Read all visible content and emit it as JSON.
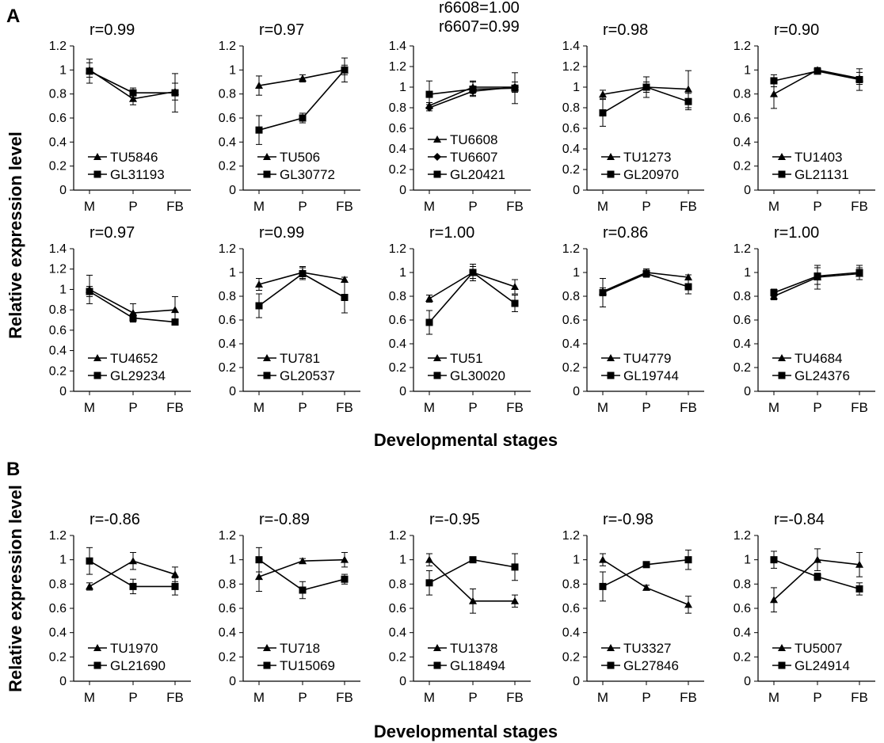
{
  "figure": {
    "panel_a_label": "A",
    "panel_b_label": "B",
    "a_ylabel": "Relative expression level",
    "a_xlabel": "Developmental stages",
    "b_ylabel": "Relative expression level",
    "b_xlabel": "Developmental stages"
  },
  "chart_data": [
    {
      "type": "line",
      "panel": "A",
      "row": 0,
      "col": 0,
      "r_label": "r=0.99",
      "categories": [
        "M",
        "P",
        "FB"
      ],
      "ylim": [
        0,
        1.2
      ],
      "yticks": [
        "0",
        "0.2",
        "0.4",
        "0.6",
        "0.8",
        "1",
        "1.2"
      ],
      "series": [
        {
          "name": "TU5846",
          "marker": "triangle",
          "values": [
            1.0,
            0.76,
            0.82
          ],
          "err": [
            0.06,
            0.05,
            0.07
          ]
        },
        {
          "name": "GL31193",
          "marker": "square",
          "values": [
            0.99,
            0.81,
            0.81
          ],
          "err": [
            0.1,
            0.04,
            0.16
          ]
        }
      ]
    },
    {
      "type": "line",
      "panel": "A",
      "row": 0,
      "col": 1,
      "r_label": "r=0.97",
      "categories": [
        "M",
        "P",
        "FB"
      ],
      "ylim": [
        0,
        1.2
      ],
      "yticks": [
        "0",
        "0.2",
        "0.4",
        "0.6",
        "0.8",
        "1",
        "1.2"
      ],
      "series": [
        {
          "name": "TU506",
          "marker": "triangle",
          "values": [
            0.87,
            0.93,
            1.0
          ],
          "err": [
            0.08,
            0.03,
            0.04
          ]
        },
        {
          "name": "GL30772",
          "marker": "square",
          "values": [
            0.5,
            0.6,
            1.0
          ],
          "err": [
            0.12,
            0.04,
            0.1
          ]
        }
      ]
    },
    {
      "type": "line",
      "panel": "A",
      "row": 0,
      "col": 2,
      "r_label_lines": [
        "r6608=1.00",
        "r6607=0.99"
      ],
      "categories": [
        "M",
        "P",
        "FB"
      ],
      "ylim": [
        0,
        1.4
      ],
      "yticks": [
        "0",
        "0.2",
        "0.4",
        "0.6",
        "0.8",
        "1",
        "1.2",
        "1.4"
      ],
      "series": [
        {
          "name": "TU6608",
          "marker": "triangle",
          "values": [
            0.82,
            1.0,
            1.0
          ],
          "err": [
            0.03,
            0.06,
            0.05
          ]
        },
        {
          "name": "TU6607",
          "marker": "diamond",
          "values": [
            0.8,
            0.96,
            1.0
          ],
          "err": [
            0.03,
            0.04,
            0.05
          ]
        },
        {
          "name": "GL20421",
          "marker": "square",
          "values": [
            0.93,
            0.98,
            0.99
          ],
          "err": [
            0.13,
            0.07,
            0.15
          ]
        }
      ]
    },
    {
      "type": "line",
      "panel": "A",
      "row": 0,
      "col": 3,
      "r_label": "r=0.98",
      "categories": [
        "M",
        "P",
        "FB"
      ],
      "ylim": [
        0,
        1.4
      ],
      "yticks": [
        "0",
        "0.2",
        "0.4",
        "0.6",
        "0.8",
        "1",
        "1.2",
        "1.4"
      ],
      "series": [
        {
          "name": "TU1273",
          "marker": "triangle",
          "values": [
            0.93,
            1.0,
            0.98
          ],
          "err": [
            0.04,
            0.05,
            0.18
          ]
        },
        {
          "name": "GL20970",
          "marker": "square",
          "values": [
            0.75,
            1.0,
            0.86
          ],
          "err": [
            0.13,
            0.1,
            0.08
          ]
        }
      ]
    },
    {
      "type": "line",
      "panel": "A",
      "row": 0,
      "col": 4,
      "r_label": "r=0.90",
      "categories": [
        "M",
        "P",
        "FB"
      ],
      "ylim": [
        0,
        1.2
      ],
      "yticks": [
        "0",
        "0.2",
        "0.4",
        "0.6",
        "0.8",
        "1",
        "1.2"
      ],
      "series": [
        {
          "name": "TU1403",
          "marker": "triangle",
          "values": [
            0.8,
            1.0,
            0.93
          ],
          "err": [
            0.12,
            0.02,
            0.05
          ]
        },
        {
          "name": "GL21131",
          "marker": "square",
          "values": [
            0.91,
            0.99,
            0.92
          ],
          "err": [
            0.05,
            0.02,
            0.09
          ]
        }
      ]
    },
    {
      "type": "line",
      "panel": "A",
      "row": 1,
      "col": 0,
      "r_label": "r=0.97",
      "categories": [
        "M",
        "P",
        "FB"
      ],
      "ylim": [
        0,
        1.4
      ],
      "yticks": [
        "0",
        "0.2",
        "0.4",
        "0.6",
        "0.8",
        "1",
        "1.2",
        "1.4"
      ],
      "series": [
        {
          "name": "TU4652",
          "marker": "triangle",
          "values": [
            1.0,
            0.77,
            0.8
          ],
          "err": [
            0.14,
            0.09,
            0.13
          ]
        },
        {
          "name": "GL29234",
          "marker": "square",
          "values": [
            0.98,
            0.72,
            0.68
          ],
          "err": [
            0.05,
            0.04,
            0.02
          ]
        }
      ]
    },
    {
      "type": "line",
      "panel": "A",
      "row": 1,
      "col": 1,
      "r_label": "r=0.99",
      "categories": [
        "M",
        "P",
        "FB"
      ],
      "ylim": [
        0,
        1.2
      ],
      "yticks": [
        "0",
        "0.2",
        "0.4",
        "0.6",
        "0.8",
        "1",
        "1.2"
      ],
      "series": [
        {
          "name": "TU781",
          "marker": "triangle",
          "values": [
            0.9,
            1.0,
            0.94
          ],
          "err": [
            0.05,
            0.05,
            0.02
          ]
        },
        {
          "name": "GL20537",
          "marker": "square",
          "values": [
            0.72,
            0.99,
            0.79
          ],
          "err": [
            0.1,
            0.05,
            0.13
          ]
        }
      ]
    },
    {
      "type": "line",
      "panel": "A",
      "row": 1,
      "col": 2,
      "r_label": "r=1.00",
      "categories": [
        "M",
        "P",
        "FB"
      ],
      "ylim": [
        0,
        1.2
      ],
      "yticks": [
        "0",
        "0.2",
        "0.4",
        "0.6",
        "0.8",
        "1",
        "1.2"
      ],
      "series": [
        {
          "name": "TU51",
          "marker": "triangle",
          "values": [
            0.78,
            1.0,
            0.88
          ],
          "err": [
            0.03,
            0.05,
            0.06
          ]
        },
        {
          "name": "GL30020",
          "marker": "square",
          "values": [
            0.58,
            1.0,
            0.74
          ],
          "err": [
            0.1,
            0.07,
            0.07
          ]
        }
      ]
    },
    {
      "type": "line",
      "panel": "A",
      "row": 1,
      "col": 3,
      "r_label": "r=0.86",
      "categories": [
        "M",
        "P",
        "FB"
      ],
      "ylim": [
        0,
        1.2
      ],
      "yticks": [
        "0",
        "0.2",
        "0.4",
        "0.6",
        "0.8",
        "1",
        "1.2"
      ],
      "series": [
        {
          "name": "TU4779",
          "marker": "triangle",
          "values": [
            0.84,
            1.0,
            0.96
          ],
          "err": [
            0.03,
            0.03,
            0.02
          ]
        },
        {
          "name": "GL19744",
          "marker": "square",
          "values": [
            0.83,
            0.99,
            0.88
          ],
          "err": [
            0.12,
            0.03,
            0.06
          ]
        }
      ]
    },
    {
      "type": "line",
      "panel": "A",
      "row": 1,
      "col": 4,
      "r_label": "r=1.00",
      "categories": [
        "M",
        "P",
        "FB"
      ],
      "ylim": [
        0,
        1.2
      ],
      "yticks": [
        "0",
        "0.2",
        "0.4",
        "0.6",
        "0.8",
        "1",
        "1.2"
      ],
      "series": [
        {
          "name": "TU4684",
          "marker": "triangle",
          "values": [
            0.8,
            0.96,
            0.99
          ],
          "err": [
            0.03,
            0.1,
            0.05
          ]
        },
        {
          "name": "GL24376",
          "marker": "square",
          "values": [
            0.83,
            0.97,
            1.0
          ],
          "err": [
            0.03,
            0.07,
            0.06
          ]
        }
      ]
    },
    {
      "type": "line",
      "panel": "B",
      "row": 2,
      "col": 0,
      "r_label": "r=-0.86",
      "categories": [
        "M",
        "P",
        "FB"
      ],
      "ylim": [
        0,
        1.2
      ],
      "yticks": [
        "0",
        "0.2",
        "0.4",
        "0.6",
        "0.8",
        "1",
        "1.2"
      ],
      "series": [
        {
          "name": "TU1970",
          "marker": "triangle",
          "values": [
            0.78,
            0.99,
            0.88
          ],
          "err": [
            0.03,
            0.07,
            0.06
          ]
        },
        {
          "name": "GL21690",
          "marker": "square",
          "values": [
            0.99,
            0.78,
            0.78
          ],
          "err": [
            0.11,
            0.06,
            0.07
          ]
        }
      ]
    },
    {
      "type": "line",
      "panel": "B",
      "row": 2,
      "col": 1,
      "r_label": "r=-0.89",
      "categories": [
        "M",
        "P",
        "FB"
      ],
      "ylim": [
        0,
        1.2
      ],
      "yticks": [
        "0",
        "0.2",
        "0.4",
        "0.6",
        "0.8",
        "1",
        "1.2"
      ],
      "series": [
        {
          "name": "TU718",
          "marker": "triangle",
          "values": [
            0.86,
            0.99,
            1.0
          ],
          "err": [
            0.12,
            0.02,
            0.06
          ]
        },
        {
          "name": "TU15069",
          "marker": "square",
          "values": [
            1.0,
            0.75,
            0.84
          ],
          "err": [
            0.1,
            0.07,
            0.04
          ]
        }
      ]
    },
    {
      "type": "line",
      "panel": "B",
      "row": 2,
      "col": 2,
      "r_label": "r=-0.95",
      "categories": [
        "M",
        "P",
        "FB"
      ],
      "ylim": [
        0,
        1.2
      ],
      "yticks": [
        "0",
        "0.2",
        "0.4",
        "0.6",
        "0.8",
        "1",
        "1.2"
      ],
      "series": [
        {
          "name": "TU1378",
          "marker": "triangle",
          "values": [
            1.0,
            0.66,
            0.66
          ],
          "err": [
            0.05,
            0.1,
            0.05
          ]
        },
        {
          "name": "GL18494",
          "marker": "square",
          "values": [
            0.81,
            1.0,
            0.94
          ],
          "err": [
            0.1,
            0.02,
            0.11
          ]
        }
      ]
    },
    {
      "type": "line",
      "panel": "B",
      "row": 2,
      "col": 3,
      "r_label": "r=-0.98",
      "categories": [
        "M",
        "P",
        "FB"
      ],
      "ylim": [
        0,
        1.2
      ],
      "yticks": [
        "0",
        "0.2",
        "0.4",
        "0.6",
        "0.8",
        "1",
        "1.2"
      ],
      "series": [
        {
          "name": "TU3327",
          "marker": "triangle",
          "values": [
            1.0,
            0.77,
            0.63
          ],
          "err": [
            0.05,
            0.02,
            0.07
          ]
        },
        {
          "name": "GL27846",
          "marker": "square",
          "values": [
            0.78,
            0.96,
            1.0
          ],
          "err": [
            0.12,
            0.02,
            0.08
          ]
        }
      ]
    },
    {
      "type": "line",
      "panel": "B",
      "row": 2,
      "col": 4,
      "r_label": "r=-0.84",
      "categories": [
        "M",
        "P",
        "FB"
      ],
      "ylim": [
        0,
        1.2
      ],
      "yticks": [
        "0",
        "0.2",
        "0.4",
        "0.6",
        "0.8",
        "1",
        "1.2"
      ],
      "series": [
        {
          "name": "TU5007",
          "marker": "triangle",
          "values": [
            0.67,
            1.0,
            0.96
          ],
          "err": [
            0.1,
            0.09,
            0.1
          ]
        },
        {
          "name": "GL24914",
          "marker": "square",
          "values": [
            1.0,
            0.86,
            0.76
          ],
          "err": [
            0.07,
            0.03,
            0.05
          ]
        }
      ]
    }
  ]
}
